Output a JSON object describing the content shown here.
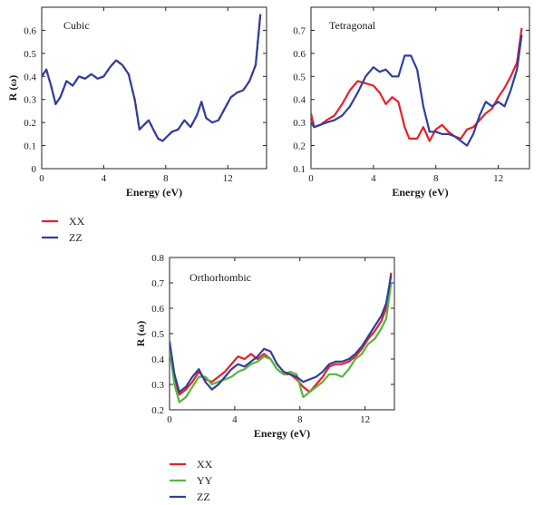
{
  "chart_data": [
    {
      "type": "line",
      "title": "Cubic",
      "xlabel": "Energy (eV)",
      "ylabel": "R (ω)",
      "xlim": [
        0,
        14.5
      ],
      "ylim": [
        0,
        0.7
      ],
      "xticks": [
        0,
        4,
        8,
        12
      ],
      "yticks": [
        0,
        0.1,
        0.2,
        0.3,
        0.4,
        0.5,
        0.6
      ],
      "ytick_labels": [
        "0",
        "0.1",
        "0.2",
        "0.3",
        "0.4",
        "0.5",
        "0.6"
      ],
      "series": [
        {
          "name": "XX",
          "color": "#e8202a",
          "dashed": true,
          "x": [
            0,
            0.3,
            0.6,
            0.9,
            1.2,
            1.6,
            2.0,
            2.4,
            2.8,
            3.2,
            3.6,
            4.0,
            4.4,
            4.8,
            5.2,
            5.6,
            6.0,
            6.3,
            6.6,
            6.9,
            7.2,
            7.5,
            7.8,
            8.1,
            8.4,
            8.8,
            9.2,
            9.6,
            10.0,
            10.3,
            10.6,
            11.0,
            11.4,
            11.8,
            12.2,
            12.6,
            13.0,
            13.4,
            13.8,
            14.1
          ],
          "y": [
            0.4,
            0.43,
            0.36,
            0.28,
            0.31,
            0.38,
            0.36,
            0.4,
            0.39,
            0.41,
            0.39,
            0.4,
            0.44,
            0.47,
            0.45,
            0.41,
            0.3,
            0.17,
            0.19,
            0.21,
            0.17,
            0.13,
            0.12,
            0.14,
            0.16,
            0.17,
            0.21,
            0.18,
            0.23,
            0.29,
            0.22,
            0.2,
            0.21,
            0.26,
            0.31,
            0.33,
            0.34,
            0.38,
            0.45,
            0.67
          ]
        },
        {
          "name": "ZZ",
          "color": "#2f3f9e",
          "dashed": false,
          "x": [
            0,
            0.3,
            0.6,
            0.9,
            1.2,
            1.6,
            2.0,
            2.4,
            2.8,
            3.2,
            3.6,
            4.0,
            4.4,
            4.8,
            5.2,
            5.6,
            6.0,
            6.3,
            6.6,
            6.9,
            7.2,
            7.5,
            7.8,
            8.1,
            8.4,
            8.8,
            9.2,
            9.6,
            10.0,
            10.3,
            10.6,
            11.0,
            11.4,
            11.8,
            12.2,
            12.6,
            13.0,
            13.4,
            13.8,
            14.1
          ],
          "y": [
            0.4,
            0.43,
            0.36,
            0.28,
            0.31,
            0.38,
            0.36,
            0.4,
            0.39,
            0.41,
            0.39,
            0.4,
            0.44,
            0.47,
            0.45,
            0.41,
            0.3,
            0.17,
            0.19,
            0.21,
            0.17,
            0.13,
            0.12,
            0.14,
            0.16,
            0.17,
            0.21,
            0.18,
            0.23,
            0.29,
            0.22,
            0.2,
            0.21,
            0.26,
            0.31,
            0.33,
            0.34,
            0.38,
            0.45,
            0.67
          ]
        }
      ]
    },
    {
      "type": "line",
      "title": "Tetragonal",
      "xlabel": "Energy (eV)",
      "ylabel": "",
      "xlim": [
        0,
        14
      ],
      "ylim": [
        0.1,
        0.8
      ],
      "xticks": [
        0,
        4,
        8,
        12
      ],
      "yticks": [
        0.1,
        0.2,
        0.3,
        0.4,
        0.5,
        0.6,
        0.7
      ],
      "ytick_labels": [
        "0.1",
        "0.2",
        "0.3",
        "0.4",
        "0.5",
        "0.6",
        "0.7"
      ],
      "series": [
        {
          "name": "XX",
          "color": "#e8202a",
          "dashed": false,
          "x": [
            0,
            0.2,
            0.6,
            1.0,
            1.5,
            2.0,
            2.5,
            3.0,
            3.5,
            4.0,
            4.4,
            4.8,
            5.2,
            5.6,
            6.0,
            6.3,
            6.8,
            7.2,
            7.6,
            8.0,
            8.4,
            8.8,
            9.2,
            9.6,
            10.0,
            10.4,
            10.8,
            11.2,
            11.6,
            12.0,
            12.4,
            12.8,
            13.2,
            13.5
          ],
          "y": [
            0.34,
            0.28,
            0.29,
            0.31,
            0.33,
            0.38,
            0.44,
            0.48,
            0.47,
            0.46,
            0.43,
            0.38,
            0.41,
            0.39,
            0.28,
            0.23,
            0.23,
            0.28,
            0.22,
            0.27,
            0.29,
            0.26,
            0.24,
            0.23,
            0.27,
            0.28,
            0.31,
            0.34,
            0.36,
            0.41,
            0.45,
            0.5,
            0.56,
            0.71
          ]
        },
        {
          "name": "ZZ",
          "color": "#2f3f9e",
          "dashed": false,
          "x": [
            0,
            0.2,
            0.6,
            1.0,
            1.5,
            2.0,
            2.5,
            3.0,
            3.5,
            4.0,
            4.4,
            4.8,
            5.2,
            5.6,
            6.0,
            6.4,
            6.8,
            7.2,
            7.6,
            8.0,
            8.4,
            8.8,
            9.2,
            9.6,
            10.0,
            10.4,
            10.8,
            11.2,
            11.6,
            12.0,
            12.4,
            12.8,
            13.2,
            13.5
          ],
          "y": [
            0.3,
            0.28,
            0.29,
            0.3,
            0.31,
            0.33,
            0.37,
            0.43,
            0.5,
            0.54,
            0.52,
            0.53,
            0.5,
            0.5,
            0.59,
            0.59,
            0.53,
            0.37,
            0.26,
            0.26,
            0.25,
            0.25,
            0.24,
            0.22,
            0.2,
            0.25,
            0.33,
            0.39,
            0.37,
            0.39,
            0.37,
            0.44,
            0.53,
            0.68
          ]
        }
      ]
    },
    {
      "type": "line",
      "title": "Orthorhombic",
      "xlabel": "Energy (eV)",
      "ylabel": "R (ω)",
      "xlim": [
        0,
        13.8
      ],
      "ylim": [
        0.2,
        0.8
      ],
      "xticks": [
        0,
        4,
        8,
        12
      ],
      "yticks": [
        0.2,
        0.3,
        0.4,
        0.5,
        0.6,
        0.7,
        0.8
      ],
      "ytick_labels": [
        "0.2",
        "0.3",
        "0.4",
        "0.5",
        "0.6",
        "0.7",
        "0.8"
      ],
      "series": [
        {
          "name": "XX",
          "color": "#e8202a",
          "dashed": false,
          "x": [
            0,
            0.3,
            0.6,
            1.0,
            1.4,
            1.8,
            2.2,
            2.6,
            3.0,
            3.4,
            3.8,
            4.2,
            4.6,
            5.0,
            5.4,
            5.8,
            6.2,
            6.6,
            7.0,
            7.4,
            7.8,
            8.2,
            8.6,
            9.0,
            9.4,
            9.8,
            10.2,
            10.6,
            11.0,
            11.4,
            11.8,
            12.2,
            12.6,
            13.0,
            13.3,
            13.6
          ],
          "y": [
            0.45,
            0.32,
            0.26,
            0.28,
            0.31,
            0.35,
            0.32,
            0.31,
            0.33,
            0.35,
            0.38,
            0.41,
            0.4,
            0.42,
            0.4,
            0.42,
            0.4,
            0.36,
            0.34,
            0.34,
            0.32,
            0.29,
            0.27,
            0.3,
            0.33,
            0.37,
            0.38,
            0.38,
            0.39,
            0.41,
            0.44,
            0.48,
            0.51,
            0.55,
            0.6,
            0.74
          ]
        },
        {
          "name": "YY",
          "color": "#55b83a",
          "dashed": false,
          "x": [
            0,
            0.3,
            0.6,
            1.0,
            1.4,
            1.8,
            2.2,
            2.6,
            3.0,
            3.4,
            3.8,
            4.2,
            4.6,
            5.0,
            5.4,
            5.8,
            6.2,
            6.6,
            7.0,
            7.4,
            7.8,
            8.2,
            8.6,
            9.0,
            9.4,
            9.8,
            10.2,
            10.6,
            11.0,
            11.4,
            11.8,
            12.2,
            12.6,
            13.0,
            13.3,
            13.6
          ],
          "y": [
            0.44,
            0.3,
            0.23,
            0.25,
            0.29,
            0.33,
            0.33,
            0.3,
            0.31,
            0.32,
            0.33,
            0.35,
            0.36,
            0.38,
            0.39,
            0.41,
            0.4,
            0.36,
            0.34,
            0.35,
            0.34,
            0.25,
            0.27,
            0.29,
            0.31,
            0.34,
            0.34,
            0.33,
            0.36,
            0.4,
            0.42,
            0.46,
            0.48,
            0.52,
            0.56,
            0.7
          ]
        },
        {
          "name": "ZZ",
          "color": "#2f3f9e",
          "dashed": false,
          "x": [
            0,
            0.3,
            0.6,
            1.0,
            1.4,
            1.8,
            2.2,
            2.6,
            3.0,
            3.4,
            3.8,
            4.2,
            4.6,
            5.0,
            5.4,
            5.8,
            6.2,
            6.6,
            7.0,
            7.4,
            7.8,
            8.2,
            8.6,
            9.0,
            9.4,
            9.8,
            10.2,
            10.6,
            11.0,
            11.4,
            11.8,
            12.2,
            12.6,
            13.0,
            13.3,
            13.6
          ],
          "y": [
            0.47,
            0.34,
            0.27,
            0.29,
            0.33,
            0.36,
            0.31,
            0.28,
            0.3,
            0.33,
            0.36,
            0.38,
            0.37,
            0.39,
            0.41,
            0.44,
            0.43,
            0.38,
            0.35,
            0.34,
            0.33,
            0.31,
            0.32,
            0.33,
            0.35,
            0.38,
            0.39,
            0.39,
            0.4,
            0.42,
            0.45,
            0.49,
            0.53,
            0.57,
            0.62,
            0.73
          ]
        }
      ]
    }
  ]
}
